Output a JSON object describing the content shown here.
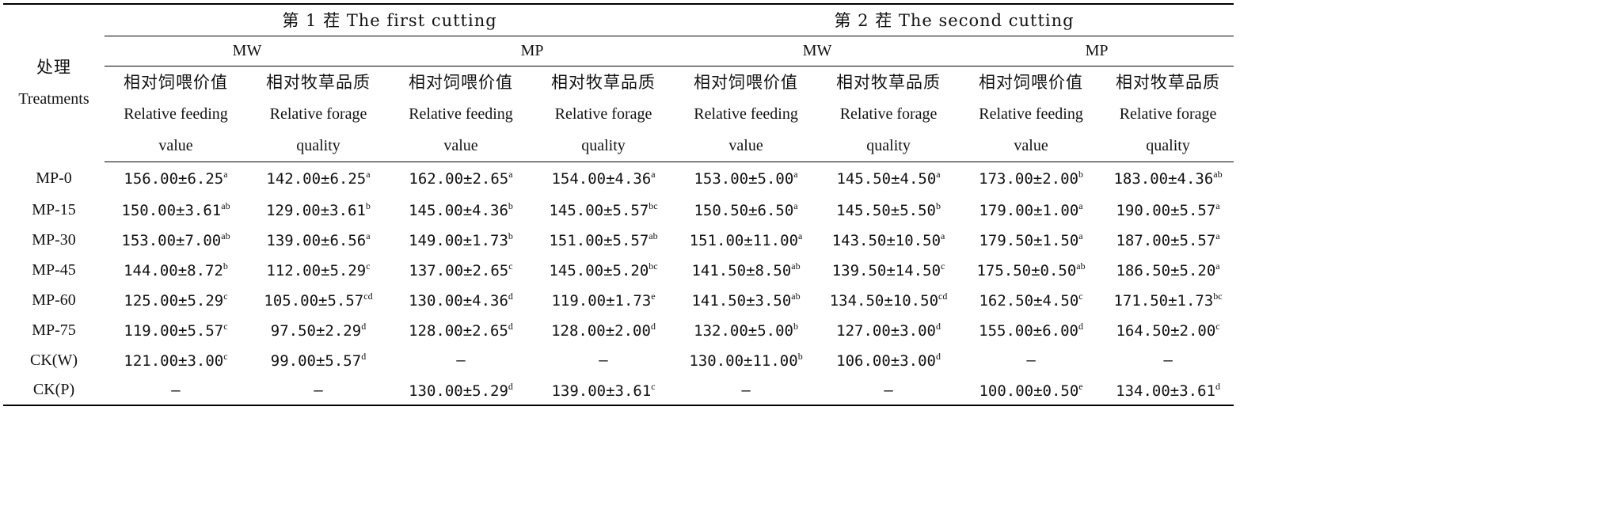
{
  "header": {
    "treatment_zh": "处理",
    "treatment_en": "Treatments",
    "cuttings": [
      {
        "label": "第 1 茬 The first cutting",
        "groups": [
          "MW",
          "MP"
        ]
      },
      {
        "label": "第 2 茬 The second cutting",
        "groups": [
          "MW",
          "MP"
        ]
      }
    ],
    "columns": [
      {
        "zh": "相对饲喂价值",
        "en1": "Relative feeding",
        "en2": "value"
      },
      {
        "zh": "相对牧草品质",
        "en1": "Relative forage",
        "en2": "quality"
      }
    ]
  },
  "rows": [
    {
      "label": "MP-0",
      "cells": [
        {
          "v": "156.00±6.25",
          "s": "a"
        },
        {
          "v": "142.00±6.25",
          "s": "a"
        },
        {
          "v": "162.00±2.65",
          "s": "a"
        },
        {
          "v": "154.00±4.36",
          "s": "a"
        },
        {
          "v": "153.00±5.00",
          "s": "a"
        },
        {
          "v": "145.50±4.50",
          "s": "a"
        },
        {
          "v": "173.00±2.00",
          "s": "b"
        },
        {
          "v": "183.00±4.36",
          "s": "ab"
        }
      ]
    },
    {
      "label": "MP-15",
      "cells": [
        {
          "v": "150.00±3.61",
          "s": "ab"
        },
        {
          "v": "129.00±3.61",
          "s": "b"
        },
        {
          "v": "145.00±4.36",
          "s": "b"
        },
        {
          "v": "145.00±5.57",
          "s": "bc"
        },
        {
          "v": "150.50±6.50",
          "s": "a"
        },
        {
          "v": "145.50±5.50",
          "s": "b"
        },
        {
          "v": "179.00±1.00",
          "s": "a"
        },
        {
          "v": "190.00±5.57",
          "s": "a"
        }
      ]
    },
    {
      "label": "MP-30",
      "cells": [
        {
          "v": "153.00±7.00",
          "s": "ab"
        },
        {
          "v": "139.00±6.56",
          "s": "a"
        },
        {
          "v": "149.00±1.73",
          "s": "b"
        },
        {
          "v": "151.00±5.57",
          "s": "ab"
        },
        {
          "v": "151.00±11.00",
          "s": "a"
        },
        {
          "v": "143.50±10.50",
          "s": "a"
        },
        {
          "v": "179.50±1.50",
          "s": "a"
        },
        {
          "v": "187.00±5.57",
          "s": "a"
        }
      ]
    },
    {
      "label": "MP-45",
      "cells": [
        {
          "v": "144.00±8.72",
          "s": "b"
        },
        {
          "v": "112.00±5.29",
          "s": "c"
        },
        {
          "v": "137.00±2.65",
          "s": "c"
        },
        {
          "v": "145.00±5.20",
          "s": "bc"
        },
        {
          "v": "141.50±8.50",
          "s": "ab"
        },
        {
          "v": "139.50±14.50",
          "s": "c"
        },
        {
          "v": "175.50±0.50",
          "s": "ab"
        },
        {
          "v": "186.50±5.20",
          "s": "a"
        }
      ]
    },
    {
      "label": "MP-60",
      "cells": [
        {
          "v": "125.00±5.29",
          "s": "c"
        },
        {
          "v": "105.00±5.57",
          "s": "cd"
        },
        {
          "v": "130.00±4.36",
          "s": "d"
        },
        {
          "v": "119.00±1.73",
          "s": "e"
        },
        {
          "v": "141.50±3.50",
          "s": "ab"
        },
        {
          "v": "134.50±10.50",
          "s": "cd"
        },
        {
          "v": "162.50±4.50",
          "s": "c"
        },
        {
          "v": "171.50±1.73",
          "s": "bc"
        }
      ]
    },
    {
      "label": "MP-75",
      "cells": [
        {
          "v": "119.00±5.57",
          "s": "c"
        },
        {
          "v": "97.50±2.29",
          "s": "d"
        },
        {
          "v": "128.00±2.65",
          "s": "d"
        },
        {
          "v": "128.00±2.00",
          "s": "d"
        },
        {
          "v": "132.00±5.00",
          "s": "b"
        },
        {
          "v": "127.00±3.00",
          "s": "d"
        },
        {
          "v": "155.00±6.00",
          "s": "d"
        },
        {
          "v": "164.50±2.00",
          "s": "c"
        }
      ]
    },
    {
      "label": "CK(W)",
      "cells": [
        {
          "v": "121.00±3.00",
          "s": "c"
        },
        {
          "v": "99.00±5.57",
          "s": "d"
        },
        {
          "v": "—",
          "s": ""
        },
        {
          "v": "—",
          "s": ""
        },
        {
          "v": "130.00±11.00",
          "s": "b"
        },
        {
          "v": "106.00±3.00",
          "s": "d"
        },
        {
          "v": "—",
          "s": ""
        },
        {
          "v": "—",
          "s": ""
        }
      ]
    },
    {
      "label": "CK(P)",
      "cells": [
        {
          "v": "—",
          "s": ""
        },
        {
          "v": "—",
          "s": ""
        },
        {
          "v": "130.00±5.29",
          "s": "d"
        },
        {
          "v": "139.00±3.61",
          "s": "c"
        },
        {
          "v": "—",
          "s": ""
        },
        {
          "v": "—",
          "s": ""
        },
        {
          "v": "100.00±0.50",
          "s": "e"
        },
        {
          "v": "134.00±3.61",
          "s": "d"
        }
      ]
    }
  ]
}
